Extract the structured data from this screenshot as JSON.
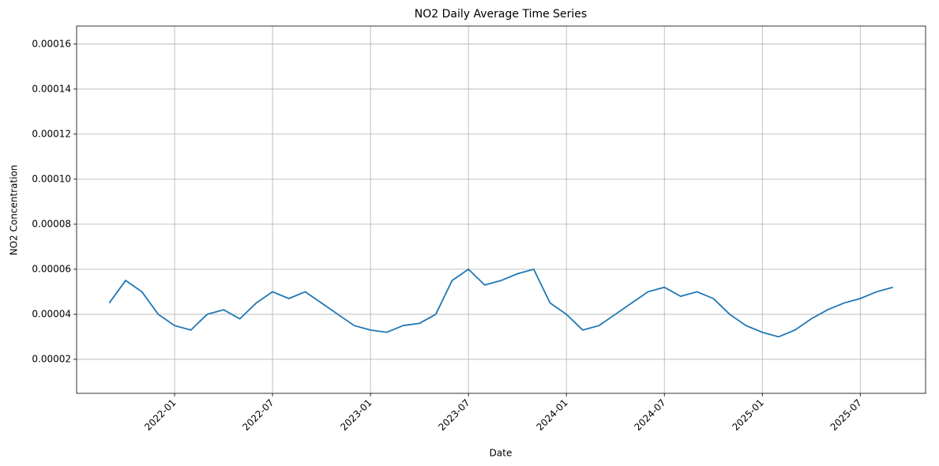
{
  "chart_data": {
    "type": "line",
    "title": "NO2 Daily Average Time Series",
    "x_label": "Date",
    "y_label": "NO2 Concentration",
    "x": [
      "2021-09",
      "2021-10",
      "2021-11",
      "2021-12",
      "2022-01",
      "2022-02",
      "2022-03",
      "2022-04",
      "2022-05",
      "2022-06",
      "2022-07",
      "2022-08",
      "2022-09",
      "2022-10",
      "2022-11",
      "2022-12",
      "2023-01",
      "2023-02",
      "2023-03",
      "2023-04",
      "2023-05",
      "2023-06",
      "2023-07",
      "2023-08",
      "2023-09",
      "2023-10",
      "2023-11",
      "2023-12",
      "2024-01",
      "2024-02",
      "2024-03",
      "2024-04",
      "2024-05",
      "2024-06",
      "2024-07",
      "2024-08",
      "2024-09",
      "2024-10",
      "2024-11",
      "2024-12",
      "2025-01",
      "2025-02",
      "2025-03",
      "2025-04",
      "2025-05",
      "2025-06",
      "2025-07",
      "2025-08",
      "2025-09"
    ],
    "series": [
      {
        "name": "NO2",
        "color": "#1f77b4",
        "values": [
          4.5e-05,
          5.5e-05,
          5e-05,
          4e-05,
          3.5e-05,
          3.3e-05,
          4e-05,
          4.2e-05,
          3.8e-05,
          4.5e-05,
          5e-05,
          4.7e-05,
          5e-05,
          4.5e-05,
          4e-05,
          3.5e-05,
          3.3e-05,
          3.2e-05,
          3.5e-05,
          3.6e-05,
          4e-05,
          5.5e-05,
          6e-05,
          5.3e-05,
          5.5e-05,
          5.8e-05,
          6e-05,
          4.5e-05,
          4e-05,
          3.3e-05,
          3.5e-05,
          4e-05,
          4.5e-05,
          5e-05,
          5.2e-05,
          4.8e-05,
          5e-05,
          4.7e-05,
          4e-05,
          3.5e-05,
          3.2e-05,
          3e-05,
          3.3e-05,
          3.8e-05,
          4.2e-05,
          4.5e-05,
          4.7e-05,
          5e-05,
          5.2e-05
        ]
      }
    ],
    "xlim": [
      "2021-07",
      "2025-11"
    ],
    "xticks": [
      "2022-01",
      "2022-07",
      "2023-01",
      "2023-07",
      "2024-01",
      "2024-07",
      "2025-01",
      "2025-07"
    ],
    "ylim": [
      4.9e-06,
      0.000168
    ],
    "yticks": [
      {
        "value": 2e-05,
        "label": "0.00002"
      },
      {
        "value": 4e-05,
        "label": "0.00004"
      },
      {
        "value": 6e-05,
        "label": "0.00006"
      },
      {
        "value": 8e-05,
        "label": "0.00008"
      },
      {
        "value": 0.0001,
        "label": "0.00010"
      },
      {
        "value": 0.00012,
        "label": "0.00012"
      },
      {
        "value": 0.00014,
        "label": "0.00014"
      },
      {
        "value": 0.00016,
        "label": "0.00016"
      }
    ],
    "grid": true
  }
}
